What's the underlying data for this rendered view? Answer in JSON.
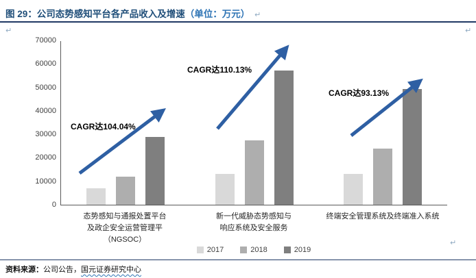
{
  "header": {
    "title_prefix": "图 29：公司态势感知平台各产品收入及增速",
    "title_unit": "（单位：万元）"
  },
  "marks": {
    "pilcrow": "↵"
  },
  "chart_data": {
    "type": "bar",
    "title": "公司态势感知平台各产品收入及增速",
    "unit": "万元",
    "ylim": [
      0,
      70000
    ],
    "yticks": [
      0,
      10000,
      20000,
      30000,
      40000,
      50000,
      60000,
      70000
    ],
    "grid": false,
    "legend_position": "bottom",
    "categories": [
      "态势感知与通报处置平台\n及政企安全运营管理平\n（NGSOC）",
      "新一代威胁态势感知与\n响应系统及安全服务",
      "终端安全管理系统及终端准入系统"
    ],
    "series": [
      {
        "name": "2017",
        "color": "#d9d9d9",
        "values": [
          7000,
          13000,
          13200
        ]
      },
      {
        "name": "2018",
        "color": "#aeaeae",
        "values": [
          12000,
          27500,
          24000
        ]
      },
      {
        "name": "2019",
        "color": "#7f7f7f",
        "values": [
          29000,
          57300,
          49300
        ]
      }
    ],
    "annotations": [
      {
        "label": "CAGR达104.04%"
      },
      {
        "label": "CAGR达110.13%"
      },
      {
        "label": "CAGR达93.13%"
      }
    ],
    "arrow_color": "#2e5fa3"
  },
  "footer": {
    "label": "资料来源：",
    "source": "公司公告，",
    "org": "国元证券研究中心"
  },
  "colors": {
    "title_navy": "#1f4e79",
    "unit_blue": "#2e74b5",
    "rule_navy": "#1f3864",
    "arrow_blue": "#2e5fa3",
    "axis_gray": "#595959"
  }
}
